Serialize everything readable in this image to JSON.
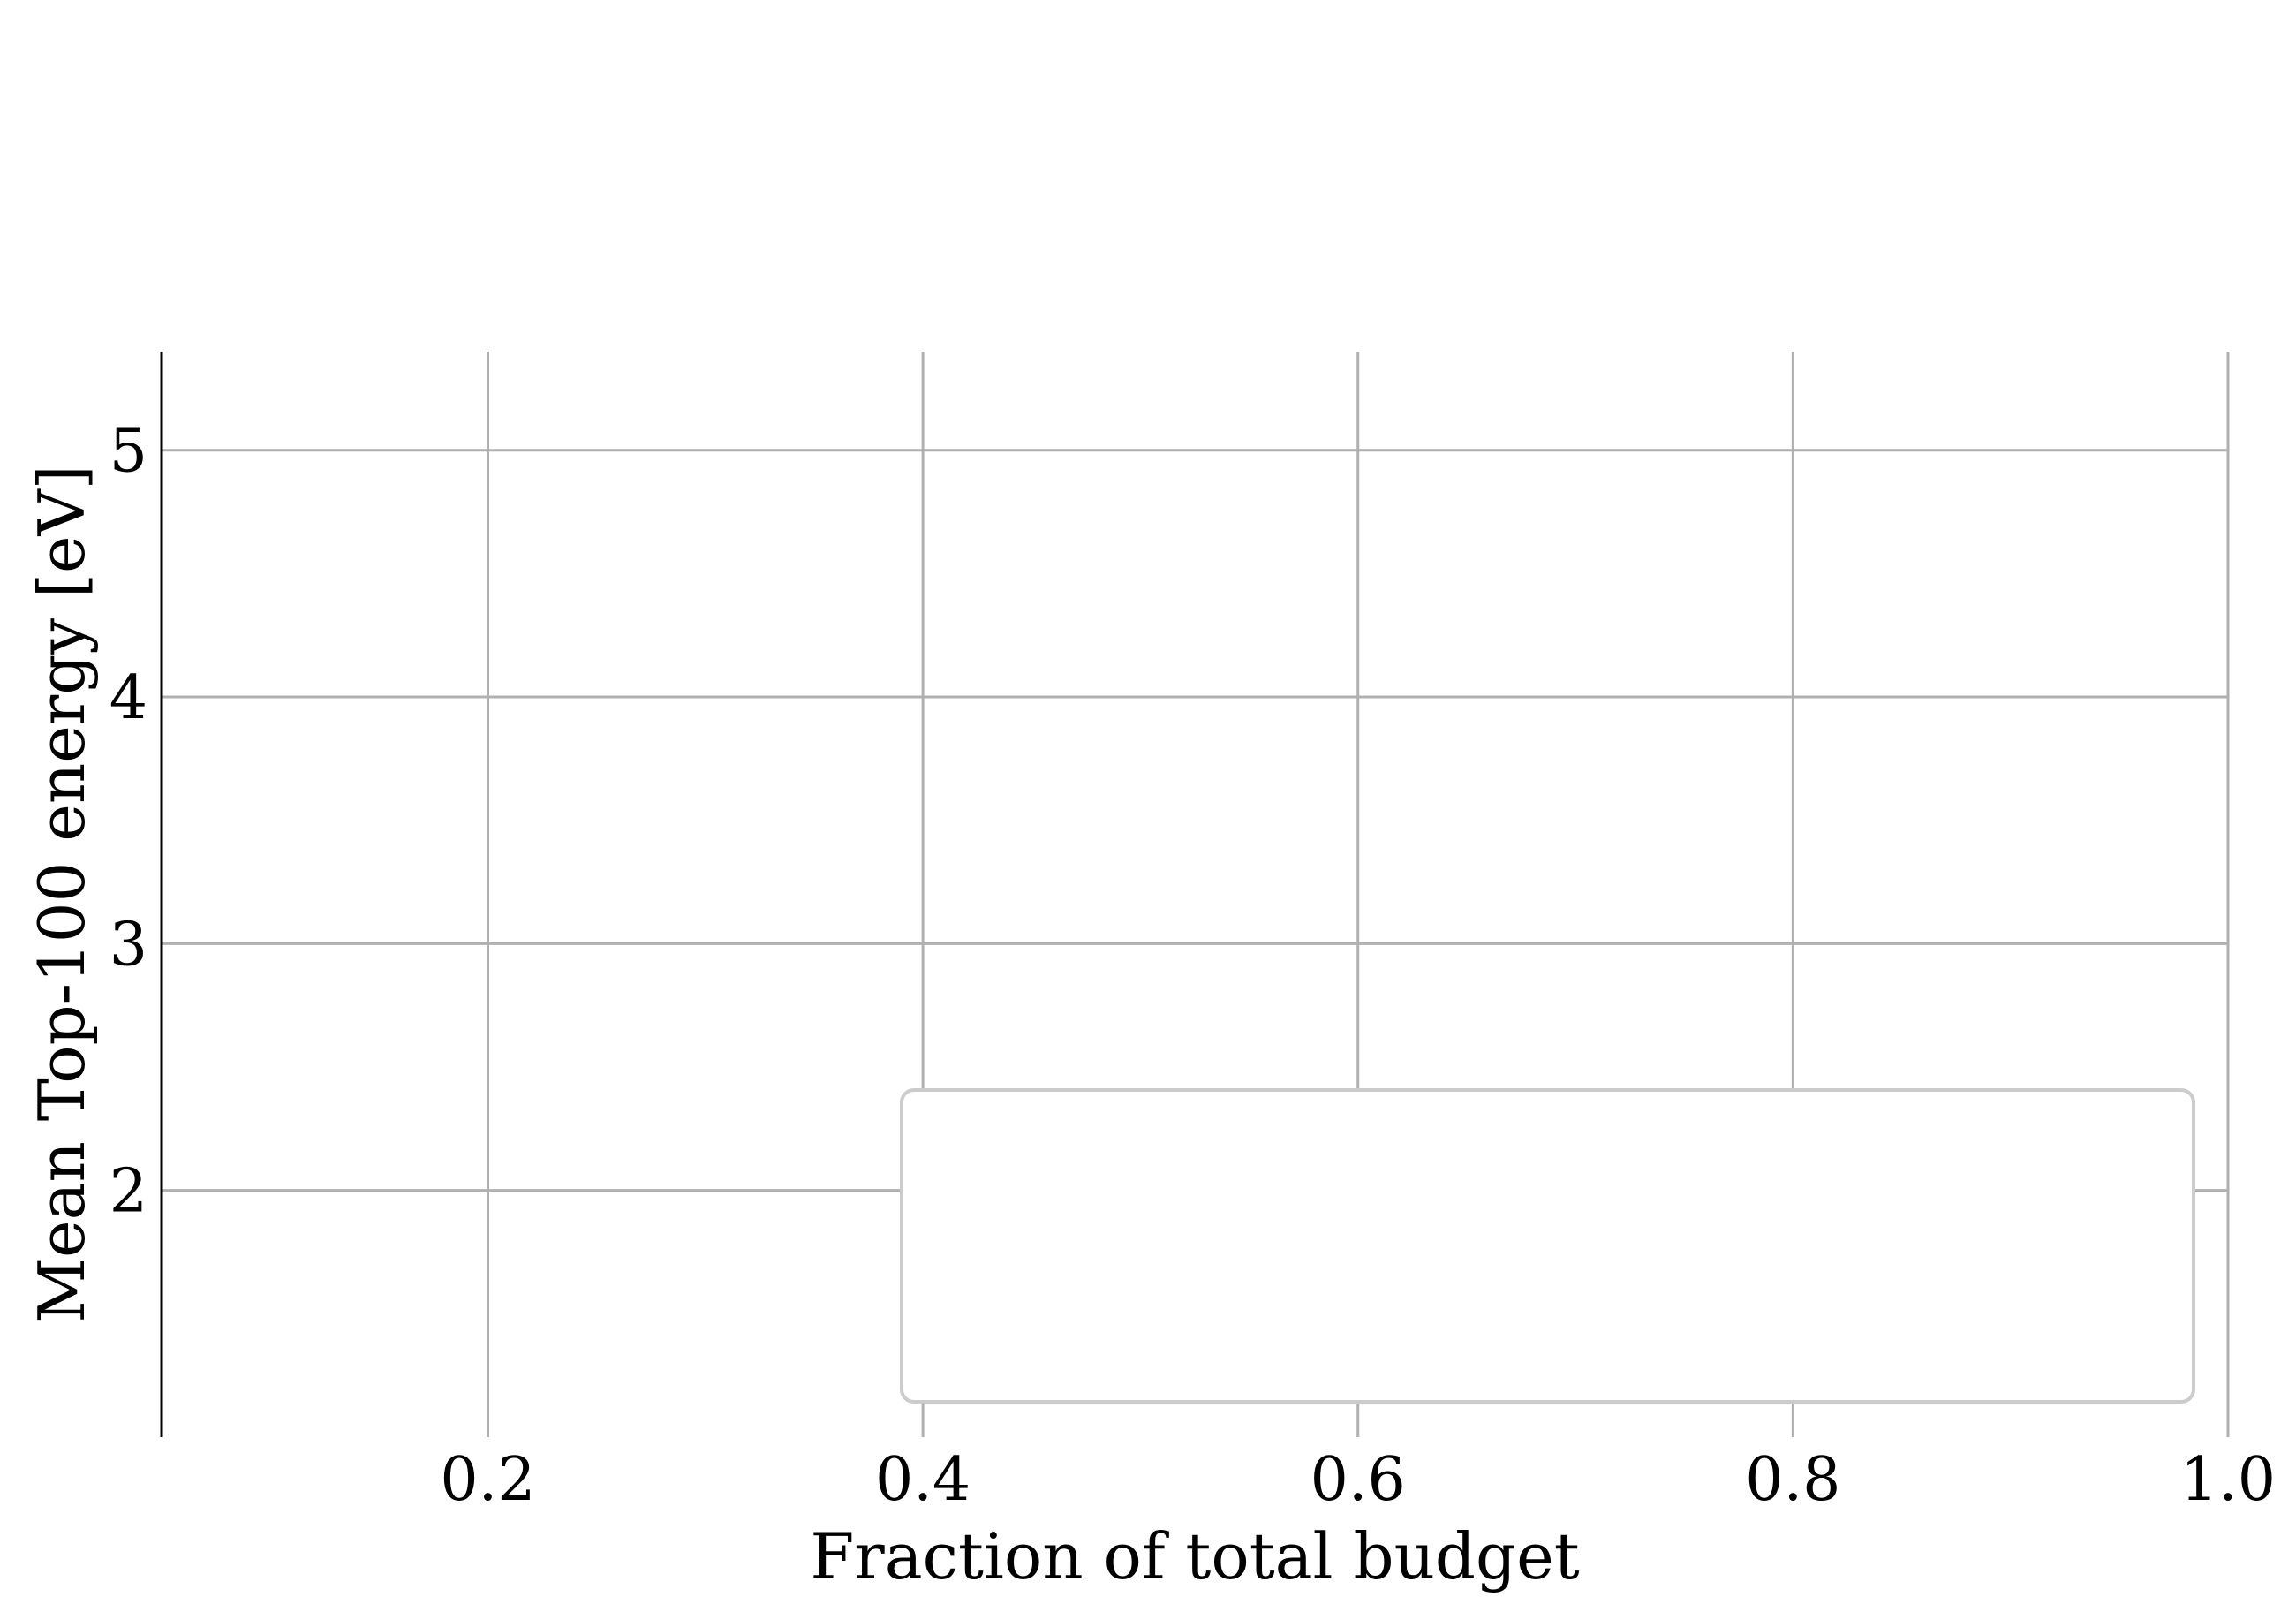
{
  "chart_data": {
    "type": "line",
    "title": "",
    "xlabel": "Fraction of total budget",
    "ylabel": "Mean Top-100 energy [eV]",
    "xlim": [
      0.05,
      1.0
    ],
    "ylim": [
      1.0,
      5.4
    ],
    "x_ticks": [
      0.2,
      0.4,
      0.6,
      0.8,
      1.0
    ],
    "x_tick_labels": [
      "0.2",
      "0.4",
      "0.6",
      "0.8",
      "1.0"
    ],
    "y_ticks": [
      2,
      3,
      4,
      5
    ],
    "y_tick_labels": [
      "2",
      "3",
      "4",
      "5"
    ],
    "grid": true,
    "legend": "lower-right",
    "series": []
  }
}
